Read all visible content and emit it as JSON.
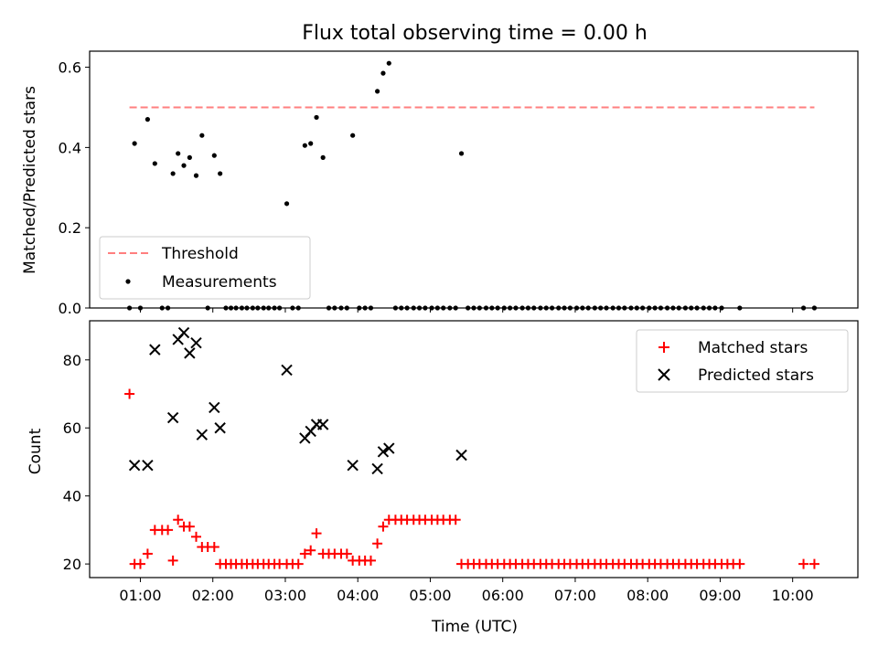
{
  "chart_data": [
    {
      "type": "scatter",
      "title": "Flux total observing time = 0.00 h",
      "xlabel": "",
      "ylabel": "Matched/Predicted stars",
      "xlim": [
        0.3,
        10.9
      ],
      "ylim": [
        0,
        0.64
      ],
      "yticks": [
        0.0,
        0.2,
        0.4,
        0.6
      ],
      "ytick_labels": [
        "0.0",
        "0.2",
        "0.4",
        "0.6"
      ],
      "legend_position": "lower-left",
      "threshold": {
        "name": "Threshold",
        "value": 0.5,
        "x": [
          0.85,
          10.3
        ],
        "color": "#ff7f7f"
      },
      "series": [
        {
          "name": "Measurements",
          "color": "#000000",
          "points": [
            [
              0.85,
              0.0
            ],
            [
              0.92,
              0.41
            ],
            [
              1.0,
              0.0
            ],
            [
              1.1,
              0.47
            ],
            [
              1.2,
              0.36
            ],
            [
              1.3,
              0.0
            ],
            [
              1.38,
              0.0
            ],
            [
              1.45,
              0.335
            ],
            [
              1.52,
              0.385
            ],
            [
              1.6,
              0.355
            ],
            [
              1.68,
              0.375
            ],
            [
              1.77,
              0.33
            ],
            [
              1.85,
              0.43
            ],
            [
              1.93,
              0.0
            ],
            [
              2.02,
              0.38
            ],
            [
              2.1,
              0.335
            ],
            [
              2.18,
              0.0
            ],
            [
              2.25,
              0.0
            ],
            [
              2.32,
              0.0
            ],
            [
              2.4,
              0.0
            ],
            [
              2.47,
              0.0
            ],
            [
              2.55,
              0.0
            ],
            [
              2.62,
              0.0
            ],
            [
              2.7,
              0.0
            ],
            [
              2.77,
              0.0
            ],
            [
              2.85,
              0.0
            ],
            [
              2.92,
              0.0
            ],
            [
              3.02,
              0.26
            ],
            [
              3.1,
              0.0
            ],
            [
              3.18,
              0.0
            ],
            [
              3.27,
              0.405
            ],
            [
              3.35,
              0.41
            ],
            [
              3.43,
              0.475
            ],
            [
              3.52,
              0.375
            ],
            [
              3.6,
              0.0
            ],
            [
              3.68,
              0.0
            ],
            [
              3.77,
              0.0
            ],
            [
              3.85,
              0.0
            ],
            [
              3.93,
              0.43
            ],
            [
              4.02,
              0.0
            ],
            [
              4.1,
              0.0
            ],
            [
              4.18,
              0.0
            ],
            [
              4.27,
              0.54
            ],
            [
              4.35,
              0.585
            ],
            [
              4.43,
              0.61
            ],
            [
              4.52,
              0.0
            ],
            [
              4.6,
              0.0
            ],
            [
              4.68,
              0.0
            ],
            [
              4.77,
              0.0
            ],
            [
              4.85,
              0.0
            ],
            [
              4.93,
              0.0
            ],
            [
              5.02,
              0.0
            ],
            [
              5.1,
              0.0
            ],
            [
              5.18,
              0.0
            ],
            [
              5.27,
              0.0
            ],
            [
              5.35,
              0.0
            ],
            [
              5.43,
              0.385
            ],
            [
              5.52,
              0.0
            ],
            [
              5.6,
              0.0
            ],
            [
              5.68,
              0.0
            ],
            [
              5.77,
              0.0
            ],
            [
              5.85,
              0.0
            ],
            [
              5.93,
              0.0
            ],
            [
              6.02,
              0.0
            ],
            [
              6.1,
              0.0
            ],
            [
              6.18,
              0.0
            ],
            [
              6.27,
              0.0
            ],
            [
              6.35,
              0.0
            ],
            [
              6.43,
              0.0
            ],
            [
              6.52,
              0.0
            ],
            [
              6.6,
              0.0
            ],
            [
              6.68,
              0.0
            ],
            [
              6.77,
              0.0
            ],
            [
              6.85,
              0.0
            ],
            [
              6.93,
              0.0
            ],
            [
              7.02,
              0.0
            ],
            [
              7.1,
              0.0
            ],
            [
              7.18,
              0.0
            ],
            [
              7.27,
              0.0
            ],
            [
              7.35,
              0.0
            ],
            [
              7.43,
              0.0
            ],
            [
              7.52,
              0.0
            ],
            [
              7.6,
              0.0
            ],
            [
              7.68,
              0.0
            ],
            [
              7.77,
              0.0
            ],
            [
              7.85,
              0.0
            ],
            [
              7.93,
              0.0
            ],
            [
              8.02,
              0.0
            ],
            [
              8.1,
              0.0
            ],
            [
              8.18,
              0.0
            ],
            [
              8.27,
              0.0
            ],
            [
              8.35,
              0.0
            ],
            [
              8.43,
              0.0
            ],
            [
              8.52,
              0.0
            ],
            [
              8.6,
              0.0
            ],
            [
              8.68,
              0.0
            ],
            [
              8.77,
              0.0
            ],
            [
              8.85,
              0.0
            ],
            [
              8.93,
              0.0
            ],
            [
              9.02,
              0.0
            ],
            [
              9.27,
              0.0
            ],
            [
              10.15,
              0.0
            ],
            [
              10.3,
              0.0
            ]
          ]
        }
      ]
    },
    {
      "type": "scatter",
      "title": "",
      "xlabel": "Time (UTC)",
      "ylabel": "Count",
      "xlim": [
        0.3,
        10.9
      ],
      "ylim": [
        16,
        91.5
      ],
      "yticks": [
        20,
        40,
        60,
        80
      ],
      "ytick_labels": [
        "20",
        "40",
        "60",
        "80"
      ],
      "xticks": [
        1,
        2,
        3,
        4,
        5,
        6,
        7,
        8,
        9,
        10
      ],
      "xtick_labels": [
        "01:00",
        "02:00",
        "03:00",
        "04:00",
        "05:00",
        "06:00",
        "07:00",
        "08:00",
        "09:00",
        "10:00"
      ],
      "legend_position": "upper-right",
      "series": [
        {
          "name": "Matched stars",
          "marker": "plus",
          "color": "#ff0000",
          "points": [
            [
              0.85,
              70
            ],
            [
              0.92,
              20
            ],
            [
              1.0,
              20
            ],
            [
              1.1,
              23
            ],
            [
              1.2,
              30
            ],
            [
              1.3,
              30
            ],
            [
              1.38,
              30
            ],
            [
              1.45,
              21
            ],
            [
              1.52,
              33
            ],
            [
              1.6,
              31
            ],
            [
              1.68,
              31
            ],
            [
              1.77,
              28
            ],
            [
              1.85,
              25
            ],
            [
              1.93,
              25
            ],
            [
              2.02,
              25
            ],
            [
              2.1,
              20
            ],
            [
              2.18,
              20
            ],
            [
              2.25,
              20
            ],
            [
              2.32,
              20
            ],
            [
              2.4,
              20
            ],
            [
              2.47,
              20
            ],
            [
              2.55,
              20
            ],
            [
              2.62,
              20
            ],
            [
              2.7,
              20
            ],
            [
              2.77,
              20
            ],
            [
              2.85,
              20
            ],
            [
              2.92,
              20
            ],
            [
              3.02,
              20
            ],
            [
              3.1,
              20
            ],
            [
              3.18,
              20
            ],
            [
              3.27,
              23
            ],
            [
              3.35,
              24
            ],
            [
              3.43,
              29
            ],
            [
              3.52,
              23
            ],
            [
              3.6,
              23
            ],
            [
              3.68,
              23
            ],
            [
              3.77,
              23
            ],
            [
              3.85,
              23
            ],
            [
              3.93,
              21
            ],
            [
              4.02,
              21
            ],
            [
              4.1,
              21
            ],
            [
              4.18,
              21
            ],
            [
              4.27,
              26
            ],
            [
              4.35,
              31
            ],
            [
              4.43,
              33
            ],
            [
              4.52,
              33
            ],
            [
              4.6,
              33
            ],
            [
              4.68,
              33
            ],
            [
              4.77,
              33
            ],
            [
              4.85,
              33
            ],
            [
              4.93,
              33
            ],
            [
              5.02,
              33
            ],
            [
              5.1,
              33
            ],
            [
              5.18,
              33
            ],
            [
              5.27,
              33
            ],
            [
              5.35,
              33
            ],
            [
              5.43,
              20
            ],
            [
              5.52,
              20
            ],
            [
              5.6,
              20
            ],
            [
              5.68,
              20
            ],
            [
              5.77,
              20
            ],
            [
              5.85,
              20
            ],
            [
              5.93,
              20
            ],
            [
              6.02,
              20
            ],
            [
              6.1,
              20
            ],
            [
              6.18,
              20
            ],
            [
              6.27,
              20
            ],
            [
              6.35,
              20
            ],
            [
              6.43,
              20
            ],
            [
              6.52,
              20
            ],
            [
              6.6,
              20
            ],
            [
              6.68,
              20
            ],
            [
              6.77,
              20
            ],
            [
              6.85,
              20
            ],
            [
              6.93,
              20
            ],
            [
              7.02,
              20
            ],
            [
              7.1,
              20
            ],
            [
              7.18,
              20
            ],
            [
              7.27,
              20
            ],
            [
              7.35,
              20
            ],
            [
              7.43,
              20
            ],
            [
              7.52,
              20
            ],
            [
              7.6,
              20
            ],
            [
              7.68,
              20
            ],
            [
              7.77,
              20
            ],
            [
              7.85,
              20
            ],
            [
              7.93,
              20
            ],
            [
              8.02,
              20
            ],
            [
              8.1,
              20
            ],
            [
              8.18,
              20
            ],
            [
              8.27,
              20
            ],
            [
              8.35,
              20
            ],
            [
              8.43,
              20
            ],
            [
              8.52,
              20
            ],
            [
              8.6,
              20
            ],
            [
              8.68,
              20
            ],
            [
              8.77,
              20
            ],
            [
              8.85,
              20
            ],
            [
              8.93,
              20
            ],
            [
              9.02,
              20
            ],
            [
              9.1,
              20
            ],
            [
              9.18,
              20
            ],
            [
              9.27,
              20
            ],
            [
              10.15,
              20
            ],
            [
              10.3,
              20
            ]
          ]
        },
        {
          "name": "Predicted stars",
          "marker": "x",
          "color": "#000000",
          "points": [
            [
              0.92,
              49
            ],
            [
              1.1,
              49
            ],
            [
              1.2,
              83
            ],
            [
              1.45,
              63
            ],
            [
              1.52,
              86
            ],
            [
              1.6,
              88
            ],
            [
              1.68,
              82
            ],
            [
              1.77,
              85
            ],
            [
              1.85,
              58
            ],
            [
              2.02,
              66
            ],
            [
              2.1,
              60
            ],
            [
              3.02,
              77
            ],
            [
              3.27,
              57
            ],
            [
              3.35,
              59
            ],
            [
              3.43,
              61
            ],
            [
              3.52,
              61
            ],
            [
              3.93,
              49
            ],
            [
              4.27,
              48
            ],
            [
              4.35,
              53
            ],
            [
              4.43,
              54
            ],
            [
              5.43,
              52
            ]
          ]
        }
      ]
    }
  ]
}
